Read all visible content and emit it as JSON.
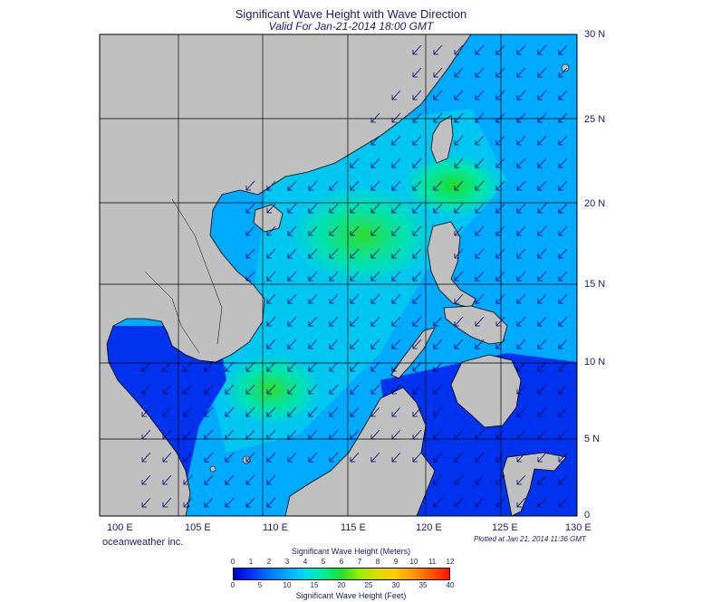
{
  "title": "Significant Wave Height with Wave Direction",
  "subtitle": "Valid For Jan-21-2014 18:00 GMT",
  "credit": "oceanweather inc.",
  "plotted": "Plotted at Jan 21, 2014 11:36 GMT",
  "lat_labels": [
    "30 N",
    "25 N",
    "20 N",
    "15 N",
    "10 N",
    "5 N",
    "0"
  ],
  "lon_labels": [
    "100 E",
    "105 E",
    "110 E",
    "115 E",
    "120 E",
    "125 E",
    "130 E"
  ],
  "colorbar": {
    "title_meters": "Significant Wave Height (Meters)",
    "title_feet": "Significant Wave Height (Feet)",
    "meter_ticks": [
      "0",
      "1",
      "2",
      "3",
      "4",
      "5",
      "6",
      "7",
      "8",
      "9",
      "10",
      "11",
      "12"
    ],
    "feet_ticks": [
      "0",
      "5",
      "10",
      "15",
      "20",
      "25",
      "30",
      "35",
      "40"
    ],
    "colors": [
      "#0000cc",
      "#0033ff",
      "#0077ff",
      "#00aaff",
      "#00ddee",
      "#00ee99",
      "#22dd33",
      "#99ee00",
      "#dddd00",
      "#ffcc00",
      "#ff9900",
      "#ff5500",
      "#ff1100"
    ]
  },
  "colors": {
    "land": "#c0c0c0",
    "coast": "#000000",
    "grid": "#000000",
    "arrow": "#000066",
    "text": "#1a1a6e"
  }
}
